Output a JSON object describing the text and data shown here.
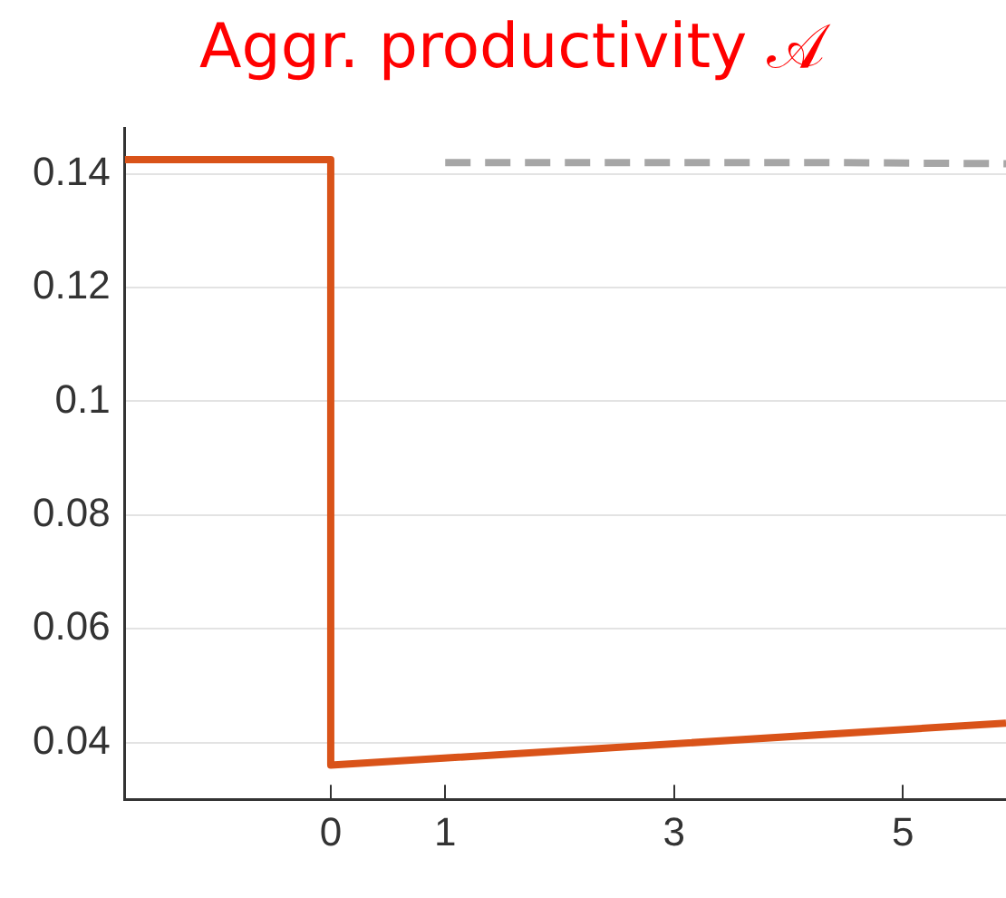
{
  "chart_data": {
    "type": "line",
    "title": "Aggr. productivity 𝒜",
    "xlim": [
      -1.8,
      5.9
    ],
    "xticks": [
      0,
      1,
      3,
      5
    ],
    "ylim": [
      0.03,
      0.148
    ],
    "yticks": [
      0.04,
      0.06,
      0.08,
      0.1,
      0.12,
      0.14
    ],
    "grid": "y",
    "legend": false,
    "marker": "none",
    "series": [
      {
        "color": "#d95319",
        "x": [
          -1.8,
          0,
          0,
          5.9
        ],
        "values": [
          0.1425,
          0.1425,
          0.036,
          0.0434
        ],
        "line_style": "solid"
      },
      {
        "color": "#a6a6a6",
        "x": [
          1,
          4.3,
          5.9
        ],
        "values": [
          0.142,
          0.142,
          0.1418
        ],
        "line_style": "dashed"
      }
    ]
  }
}
